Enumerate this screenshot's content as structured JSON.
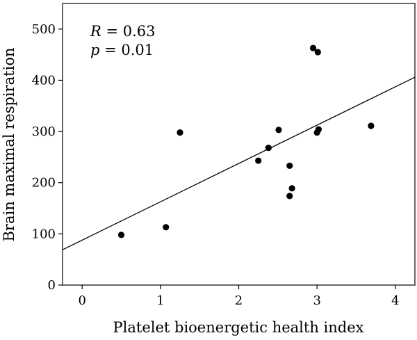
{
  "chart_data": {
    "type": "scatter",
    "xlabel": "Platelet bioenergetic health index",
    "ylabel": "Brain maximal respiration",
    "xlim": [
      -0.25,
      4.25
    ],
    "ylim": [
      0,
      550
    ],
    "xticks": [
      0,
      1,
      2,
      3,
      4
    ],
    "yticks": [
      0,
      100,
      200,
      300,
      400,
      500
    ],
    "grid": false,
    "points": [
      {
        "x": 0.5,
        "y": 98
      },
      {
        "x": 1.07,
        "y": 113
      },
      {
        "x": 1.25,
        "y": 298
      },
      {
        "x": 2.25,
        "y": 243
      },
      {
        "x": 2.38,
        "y": 268
      },
      {
        "x": 2.51,
        "y": 303
      },
      {
        "x": 2.65,
        "y": 233
      },
      {
        "x": 2.65,
        "y": 174
      },
      {
        "x": 2.68,
        "y": 189
      },
      {
        "x": 2.95,
        "y": 463
      },
      {
        "x": 3.01,
        "y": 455
      },
      {
        "x": 3.0,
        "y": 298
      },
      {
        "x": 3.02,
        "y": 304
      },
      {
        "x": 3.69,
        "y": 311
      }
    ],
    "regression_line": {
      "x1": -0.25,
      "y1": 69,
      "x2": 4.25,
      "y2": 406
    },
    "stats": {
      "r_symbol": "R",
      "r_text": " = 0.63",
      "p_symbol": "p",
      "p_text": " = 0.01"
    }
  }
}
